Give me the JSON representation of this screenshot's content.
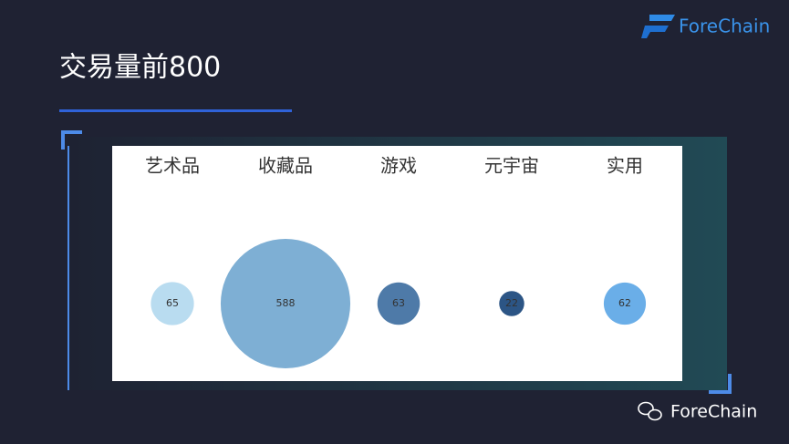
{
  "header": {
    "title": "交易量前800",
    "brand": "ForeChain"
  },
  "footer": {
    "brand": "ForeChain"
  },
  "chart_data": {
    "type": "bubble",
    "categories": [
      "艺术品",
      "收藏品",
      "游戏",
      "元宇宙",
      "实用"
    ],
    "values": [
      65,
      588,
      63,
      22,
      62
    ],
    "colors": [
      "#b9dcf0",
      "#7eafd4",
      "#4e7aa8",
      "#2c5585",
      "#6aaee8"
    ]
  }
}
